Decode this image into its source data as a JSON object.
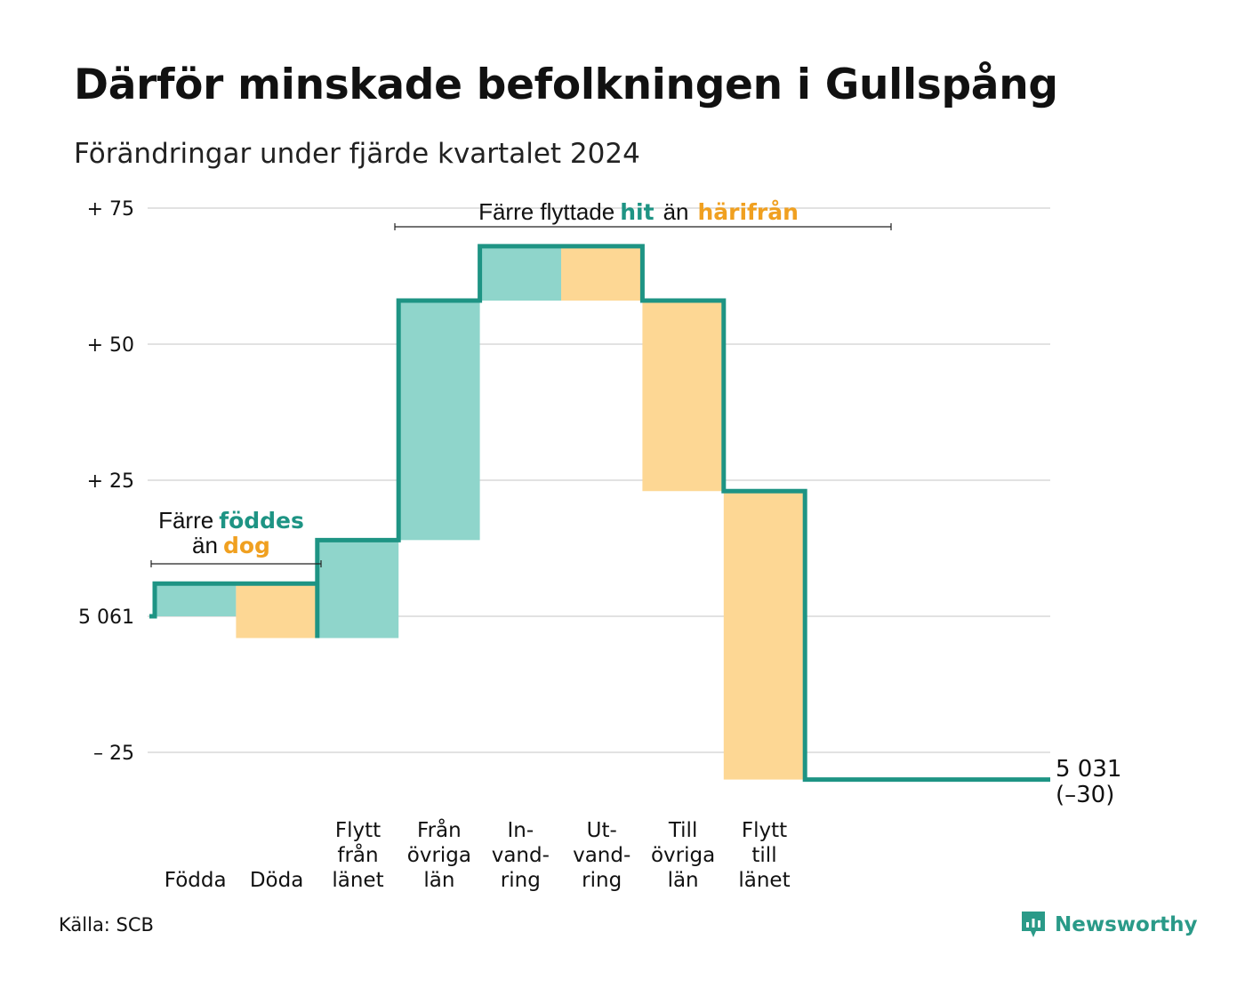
{
  "title": "Därför minskade befolkningen i Gullspång",
  "subtitle": "Förändringar under fjärde kvartalet 2024",
  "source": "Källa: SCB",
  "brand": {
    "name": "Newsworthy",
    "icon": "newsworthy-logo-icon"
  },
  "colors": {
    "accent": "#1e9484",
    "in_fill": "#8fd5cb",
    "out_fill": "#fdd794",
    "orange_text": "#f0a020",
    "grid": "#e2e2e2"
  },
  "annotations": {
    "births": {
      "line1_a": "Färre",
      "line1_b": "föddes",
      "line2_a": "än",
      "line2_b": "dog"
    },
    "migration": {
      "a": "Färre flyttade",
      "b": "hit",
      "c": "än",
      "d": "härifrån"
    }
  },
  "end_label": {
    "value": "5 031",
    "change": "(–30)"
  },
  "chart_data": {
    "type": "waterfall",
    "title": "Därför minskade befolkningen i Gullspång",
    "subtitle": "Förändringar under fjärde kvartalet 2024",
    "start_population": 5061,
    "end_population": 5031,
    "net_change": -30,
    "ylim": [
      -30,
      78
    ],
    "y_ticks": [
      {
        "value": 75,
        "label": "+ 75"
      },
      {
        "value": 50,
        "label": "+ 50"
      },
      {
        "value": 25,
        "label": "+ 25"
      },
      {
        "value": 0,
        "label": "5 061"
      },
      {
        "value": -25,
        "label": "– 25"
      }
    ],
    "grid": true,
    "categories": [
      {
        "lines": [
          "Födda"
        ],
        "value": 6,
        "kind": "in"
      },
      {
        "lines": [
          "Döda"
        ],
        "value": -10,
        "kind": "out"
      },
      {
        "lines": [
          "Flytt",
          "från",
          "länet"
        ],
        "value": 18,
        "kind": "in"
      },
      {
        "lines": [
          "Från",
          "övriga",
          "län"
        ],
        "value": 44,
        "kind": "in"
      },
      {
        "lines": [
          "In-",
          "vand-",
          "ring"
        ],
        "value": 10,
        "kind": "in"
      },
      {
        "lines": [
          "Ut-",
          "vand-",
          "ring"
        ],
        "value": -10,
        "kind": "out"
      },
      {
        "lines": [
          "Till",
          "övriga",
          "län"
        ],
        "value": -35,
        "kind": "out"
      },
      {
        "lines": [
          "Flytt",
          "till",
          "länet"
        ],
        "value": -53,
        "kind": "out"
      }
    ]
  }
}
